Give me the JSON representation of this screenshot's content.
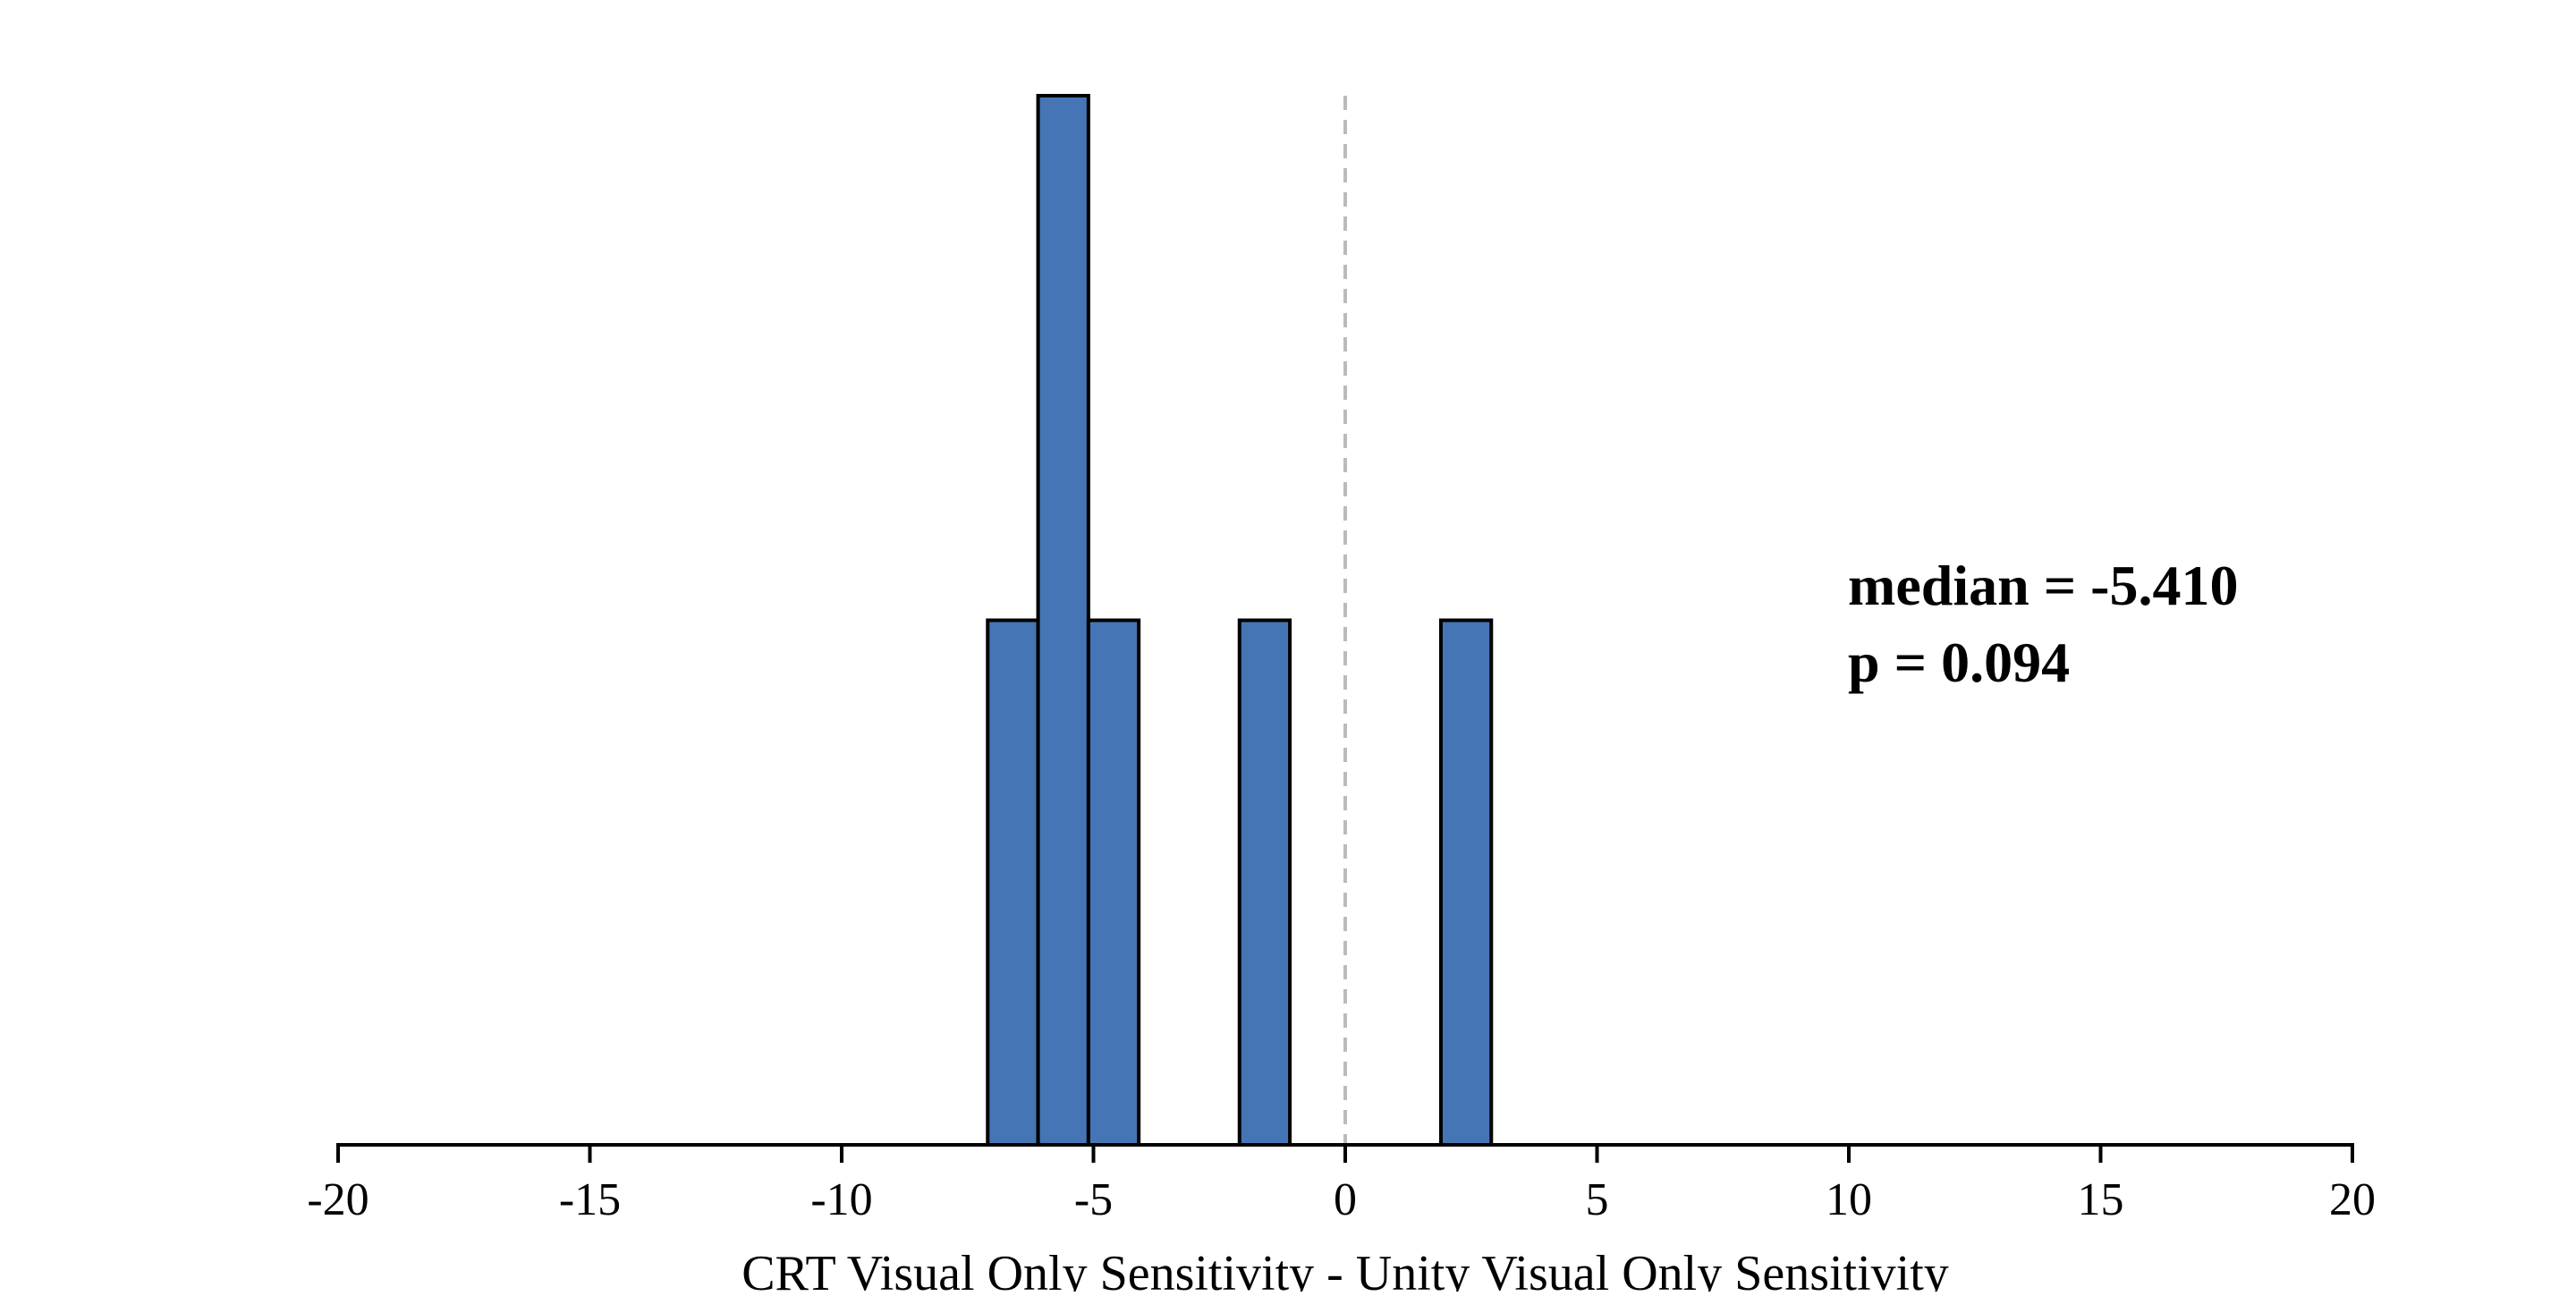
{
  "chart_data": {
    "type": "bar",
    "subtype": "histogram",
    "title": "",
    "xlabel": "CRT Visual Only Sensitivity - Unity Visual Only Sensitivity",
    "ylabel": "",
    "xlim": [
      -20,
      20
    ],
    "ylim": [
      0,
      2
    ],
    "xticks": [
      -20,
      -15,
      -10,
      -5,
      0,
      5,
      10,
      15,
      20
    ],
    "xtick_labels": [
      "-20",
      "-15",
      "-10",
      "-5",
      "0",
      "5",
      "10",
      "15",
      "20"
    ],
    "y_axis_visible": false,
    "grid": false,
    "bins": [
      {
        "x0": -7.1,
        "x1": -6.1,
        "count": 1
      },
      {
        "x0": -6.1,
        "x1": -5.1,
        "count": 2
      },
      {
        "x0": -5.1,
        "x1": -4.1,
        "count": 1
      },
      {
        "x0": -2.1,
        "x1": -1.1,
        "count": 1
      },
      {
        "x0": 1.9,
        "x1": 2.9,
        "count": 1
      }
    ],
    "bar_color": "#4575B4",
    "bar_edge_color": "#000000",
    "reference_line": {
      "x": 0,
      "style": "dashed",
      "color": "#BBBBBB"
    },
    "annotations": [
      "median = -5.410",
      "p = 0.094"
    ]
  }
}
